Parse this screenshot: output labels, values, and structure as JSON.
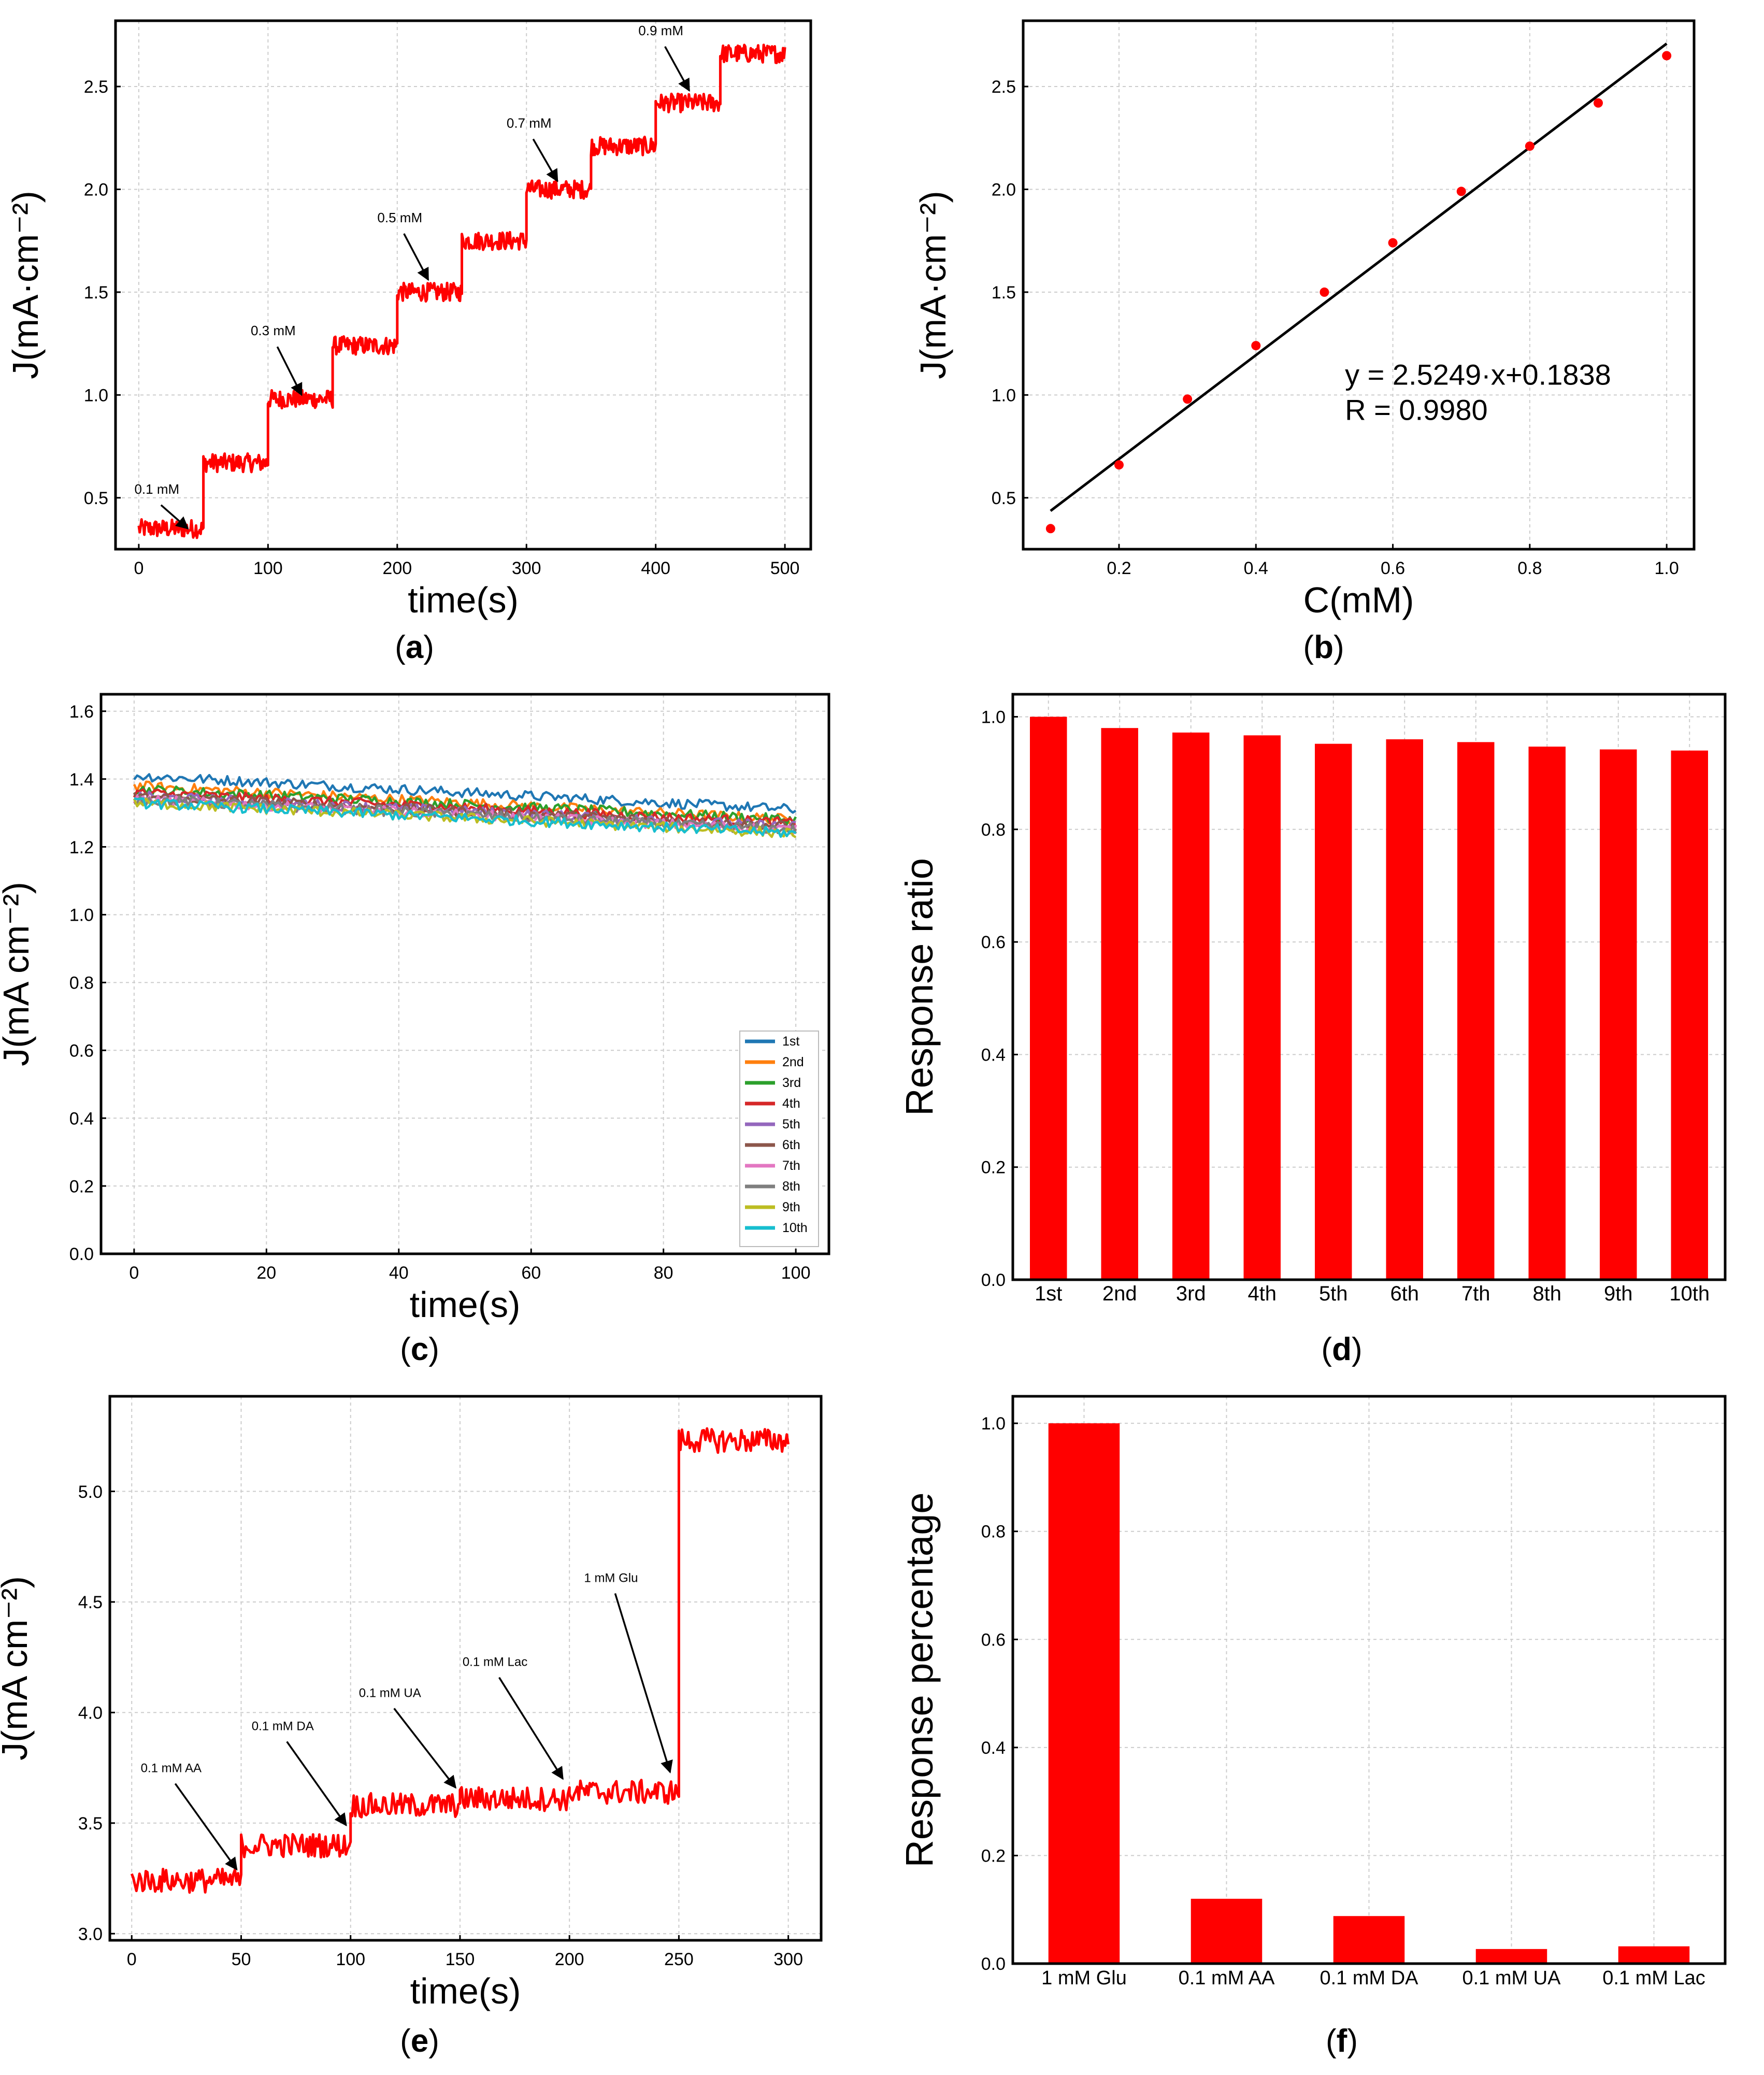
{
  "colors": {
    "red": "#ff0000",
    "black": "#000000",
    "grid": "#cccccc"
  },
  "chart_data": [
    {
      "id": "a",
      "caption": "a",
      "type": "line",
      "xlabel": "time(s)",
      "ylabel": "J(mA·cm⁻²)",
      "xlim": [
        -18,
        520
      ],
      "ylim": [
        0.25,
        2.82
      ],
      "xticks": [
        0,
        100,
        200,
        300,
        400,
        500
      ],
      "xtick_labels": [
        "0",
        "100",
        "200",
        "300",
        "400",
        "500"
      ],
      "yticks": [
        0.5,
        1.0,
        1.5,
        2.0,
        2.5
      ],
      "ytick_labels": [
        "0.5",
        "1.0",
        "1.5",
        "2.0",
        "2.5"
      ],
      "series": [
        {
          "name": "current",
          "color": "#ff0000",
          "steps": [
            {
              "t0": 0,
              "t1": 50,
              "j": 0.35
            },
            {
              "t0": 50,
              "t1": 100,
              "j": 0.67
            },
            {
              "t0": 100,
              "t1": 150,
              "j": 0.98
            },
            {
              "t0": 150,
              "t1": 200,
              "j": 1.24
            },
            {
              "t0": 200,
              "t1": 250,
              "j": 1.5
            },
            {
              "t0": 250,
              "t1": 300,
              "j": 1.75
            },
            {
              "t0": 300,
              "t1": 350,
              "j": 2.0
            },
            {
              "t0": 350,
              "t1": 400,
              "j": 2.21
            },
            {
              "t0": 400,
              "t1": 450,
              "j": 2.42
            },
            {
              "t0": 450,
              "t1": 500,
              "j": 2.66
            }
          ],
          "noise": 0.045
        }
      ],
      "annotations": [
        {
          "text": "0.1 mM",
          "x": 38,
          "y": 0.35,
          "label_x": 14,
          "label_y": 0.52
        },
        {
          "text": "0.3 mM",
          "x": 126,
          "y": 1.0,
          "label_x": 104,
          "label_y": 1.29
        },
        {
          "text": "0.5 mM",
          "x": 224,
          "y": 1.56,
          "label_x": 202,
          "label_y": 1.84
        },
        {
          "text": "0.7 mM",
          "x": 324,
          "y": 2.04,
          "label_x": 302,
          "label_y": 2.3
        },
        {
          "text": "0.9 mM",
          "x": 426,
          "y": 2.48,
          "label_x": 404,
          "label_y": 2.75
        }
      ]
    },
    {
      "id": "b",
      "caption": "b",
      "type": "scatter",
      "xlabel": "C(mM)",
      "ylabel": "J(mA·cm⁻²)",
      "xlim": [
        0.06,
        1.04
      ],
      "ylim": [
        0.25,
        2.82
      ],
      "xticks": [
        0.2,
        0.4,
        0.6,
        0.8,
        1.0
      ],
      "xtick_labels": [
        "0.2",
        "0.4",
        "0.6",
        "0.8",
        "1.0"
      ],
      "yticks": [
        0.5,
        1.0,
        1.5,
        2.0,
        2.5
      ],
      "ytick_labels": [
        "0.5",
        "1.0",
        "1.5",
        "2.0",
        "2.5"
      ],
      "x": [
        0.1,
        0.2,
        0.3,
        0.4,
        0.5,
        0.6,
        0.7,
        0.8,
        0.9,
        1.0
      ],
      "y": [
        0.35,
        0.66,
        0.98,
        1.24,
        1.5,
        1.74,
        1.99,
        2.21,
        2.42,
        2.65
      ],
      "fit": {
        "slope": 2.5249,
        "intercept": 0.1838,
        "x0": 0.1,
        "x1": 1.0
      },
      "equation": "y = 2.5249·x+0.1838",
      "r_text": "R = 0.9980",
      "equation_pos": {
        "x": 0.53,
        "y": 1.05
      }
    },
    {
      "id": "c",
      "caption": "c",
      "type": "line",
      "xlabel": "time(s)",
      "ylabel": "J(mA cm⁻²)",
      "xlim": [
        -5,
        105
      ],
      "ylim": [
        0,
        1.65
      ],
      "xticks": [
        0,
        20,
        40,
        60,
        80,
        100
      ],
      "xtick_labels": [
        "0",
        "20",
        "40",
        "60",
        "80",
        "100"
      ],
      "yticks": [
        0.0,
        0.2,
        0.4,
        0.6,
        0.8,
        1.0,
        1.2,
        1.4,
        1.6
      ],
      "ytick_labels": [
        "0.0",
        "0.2",
        "0.4",
        "0.6",
        "0.8",
        "1.0",
        "1.2",
        "1.4",
        "1.6"
      ],
      "legend_position": "lower-right",
      "series": [
        {
          "name": "1st",
          "color": "#1f77b4",
          "start": 1.41,
          "end": 1.31
        },
        {
          "name": "2nd",
          "color": "#ff7f0e",
          "start": 1.38,
          "end": 1.28
        },
        {
          "name": "3rd",
          "color": "#2ca02c",
          "start": 1.37,
          "end": 1.28
        },
        {
          "name": "4th",
          "color": "#d62728",
          "start": 1.36,
          "end": 1.27
        },
        {
          "name": "5th",
          "color": "#9467bd",
          "start": 1.35,
          "end": 1.26
        },
        {
          "name": "6th",
          "color": "#8c564b",
          "start": 1.35,
          "end": 1.26
        },
        {
          "name": "7th",
          "color": "#e377c2",
          "start": 1.34,
          "end": 1.25
        },
        {
          "name": "8th",
          "color": "#7f7f7f",
          "start": 1.34,
          "end": 1.25
        },
        {
          "name": "9th",
          "color": "#bcbd22",
          "start": 1.33,
          "end": 1.24
        },
        {
          "name": "10th",
          "color": "#17becf",
          "start": 1.33,
          "end": 1.24
        }
      ]
    },
    {
      "id": "d",
      "caption": "d",
      "type": "bar",
      "xlabel": "",
      "ylabel": "Response ratio",
      "ylim": [
        0,
        1.04
      ],
      "yticks": [
        0.0,
        0.2,
        0.4,
        0.6,
        0.8,
        1.0
      ],
      "ytick_labels": [
        "0.0",
        "0.2",
        "0.4",
        "0.6",
        "0.8",
        "1.0"
      ],
      "categories": [
        "1st",
        "2nd",
        "3rd",
        "4th",
        "5th",
        "6th",
        "7th",
        "8th",
        "9th",
        "10th"
      ],
      "values": [
        1.0,
        0.98,
        0.972,
        0.967,
        0.952,
        0.96,
        0.955,
        0.947,
        0.942,
        0.94
      ]
    },
    {
      "id": "e",
      "caption": "e",
      "type": "line",
      "xlabel": "time(s)",
      "ylabel": "J(mA cm⁻²)",
      "xlim": [
        -10,
        315
      ],
      "ylim": [
        2.97,
        5.43
      ],
      "xticks": [
        0,
        50,
        100,
        150,
        200,
        250,
        300
      ],
      "xtick_labels": [
        "0",
        "50",
        "100",
        "150",
        "200",
        "250",
        "300"
      ],
      "yticks": [
        3.0,
        3.5,
        4.0,
        4.5,
        5.0
      ],
      "ytick_labels": [
        "3.0",
        "3.5",
        "4.0",
        "4.5",
        "5.0"
      ],
      "series": [
        {
          "name": "current",
          "color": "#ff0000",
          "steps": [
            {
              "t0": 0,
              "t1": 50,
              "j": 3.24
            },
            {
              "t0": 50,
              "t1": 100,
              "j": 3.4
            },
            {
              "t0": 100,
              "t1": 150,
              "j": 3.58
            },
            {
              "t0": 150,
              "t1": 200,
              "j": 3.61
            },
            {
              "t0": 200,
              "t1": 250,
              "j": 3.64
            },
            {
              "t0": 250,
              "t1": 300,
              "j": 5.23
            }
          ],
          "noise": 0.055
        }
      ],
      "annotations": [
        {
          "text": "0.1 mM AA",
          "x": 48,
          "y": 3.29,
          "label_x": 18,
          "label_y": 3.73
        },
        {
          "text": "0.1 mM DA",
          "x": 98,
          "y": 3.49,
          "label_x": 69,
          "label_y": 3.92
        },
        {
          "text": "0.1 mM UA",
          "x": 148,
          "y": 3.66,
          "label_x": 118,
          "label_y": 4.07
        },
        {
          "text": "0.1 mM Lac",
          "x": 197,
          "y": 3.7,
          "label_x": 166,
          "label_y": 4.21
        },
        {
          "text": "1 mM Glu",
          "x": 246,
          "y": 3.73,
          "label_x": 219,
          "label_y": 4.59
        }
      ]
    },
    {
      "id": "f",
      "caption": "f",
      "type": "bar",
      "xlabel": "",
      "ylabel": "Response percentage",
      "ylim": [
        0,
        1.05
      ],
      "yticks": [
        0.0,
        0.2,
        0.4,
        0.6,
        0.8,
        1.0
      ],
      "ytick_labels": [
        "0.0",
        "0.2",
        "0.4",
        "0.6",
        "0.8",
        "1.0"
      ],
      "categories": [
        "1 mM Glu",
        "0.1 mM AA",
        "0.1 mM DA",
        "0.1 mM UA",
        "0.1 mM Lac"
      ],
      "values": [
        1.0,
        0.12,
        0.088,
        0.027,
        0.032
      ]
    }
  ]
}
